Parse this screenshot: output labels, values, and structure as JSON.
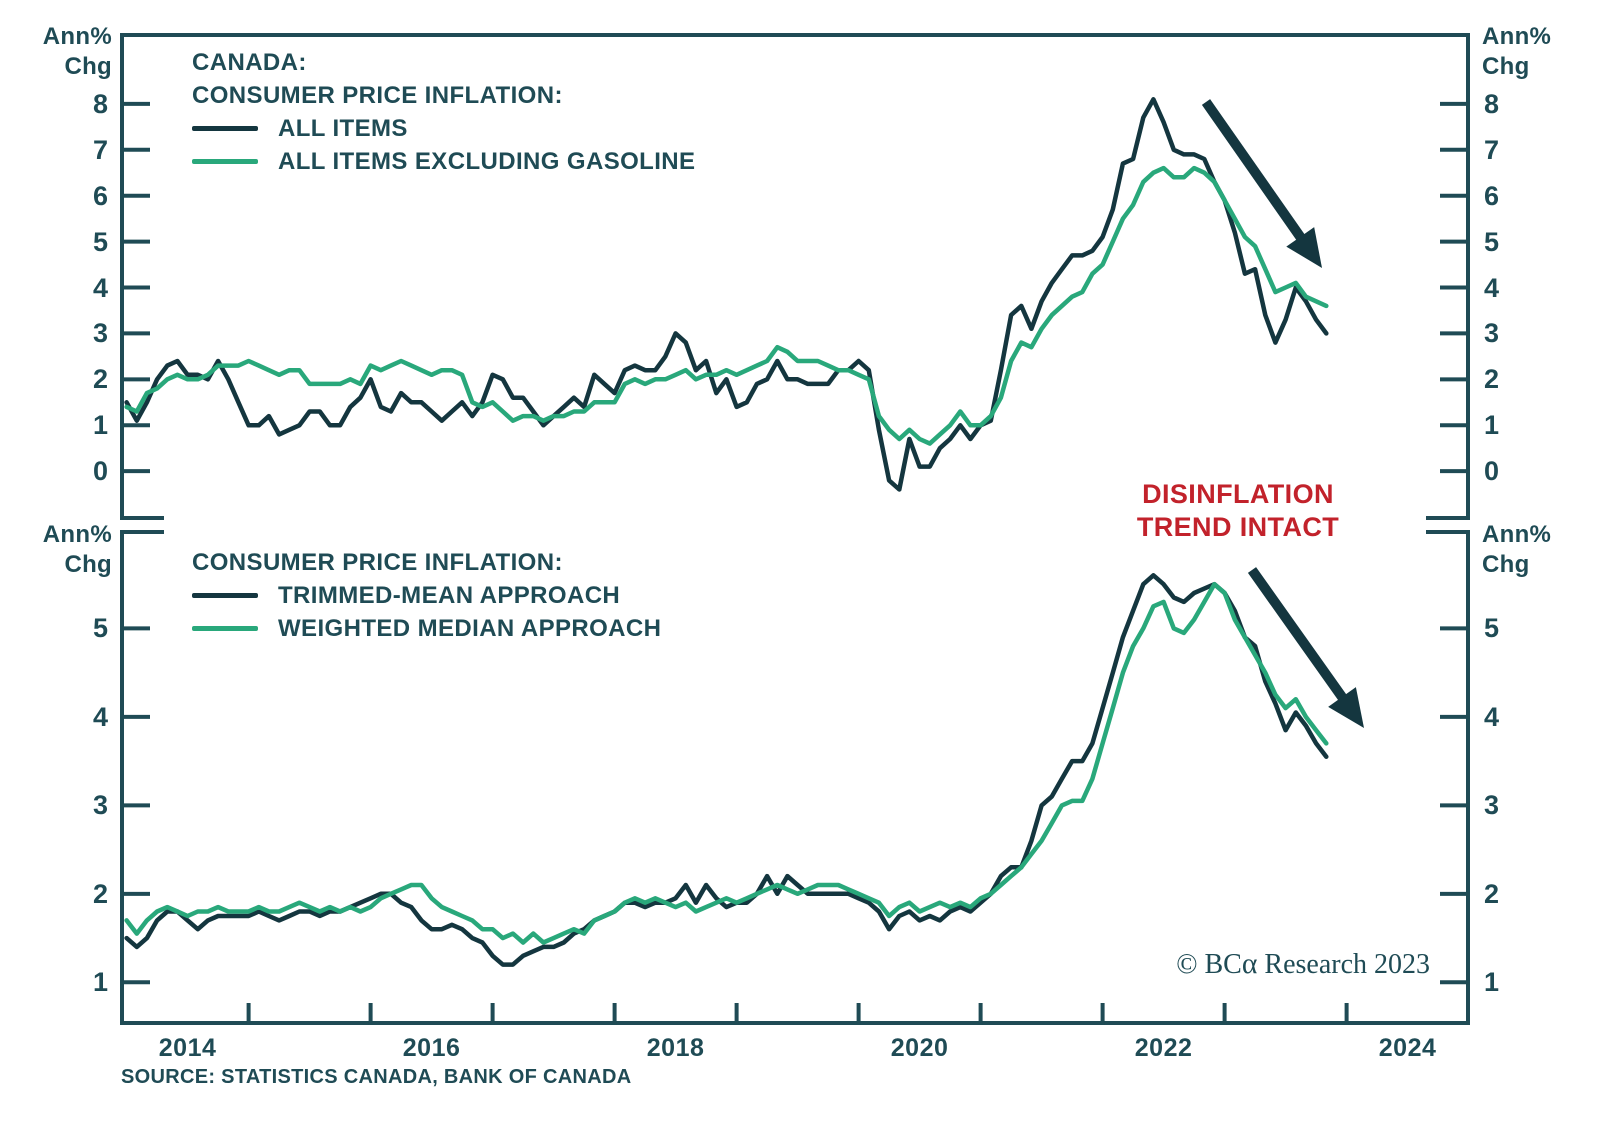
{
  "colors": {
    "axis": "#1F4B55",
    "dark_series": "#14363F",
    "green_series": "#29A87B",
    "red": "#C2222B",
    "background": "#FFFFFF"
  },
  "axis_label": {
    "line1": "Ann%",
    "line2": "Chg"
  },
  "annotation": {
    "line1": "DISINFLATION",
    "line2": "TREND INTACT"
  },
  "copyright": {
    "prefix": "© BC",
    "alpha": "α",
    "suffix": " Research 2023"
  },
  "source": "SOURCE: STATISTICS CANADA, BANK OF CANADA",
  "x_axis": {
    "year_labels": [
      "2014",
      "2016",
      "2018",
      "2020",
      "2022",
      "2024"
    ],
    "tick_years": [
      2015,
      2016,
      2017,
      2018,
      2019,
      2020,
      2021,
      2022,
      2023,
      2024
    ]
  },
  "chart_data": [
    {
      "type": "line",
      "panel": "top",
      "title": "CANADA: CONSUMER PRICE INFLATION",
      "title_lines": [
        "CANADA:",
        "CONSUMER PRICE INFLATION:"
      ],
      "ylabel": "Ann% Chg",
      "grid": false,
      "legend_position": "top-left",
      "yticks": [
        0,
        1,
        2,
        3,
        4,
        5,
        6,
        7,
        8
      ],
      "ylim": [
        -1.02,
        9.5
      ],
      "x_start_year": 2014.0,
      "x_step_years": 0.0833333,
      "series": [
        {
          "name": "ALL ITEMS",
          "color_key": "dark_series",
          "values": [
            1.5,
            1.1,
            1.5,
            2.0,
            2.3,
            2.4,
            2.1,
            2.1,
            2.0,
            2.4,
            2.0,
            1.5,
            1.0,
            1.0,
            1.2,
            0.8,
            0.9,
            1.0,
            1.3,
            1.3,
            1.0,
            1.0,
            1.4,
            1.6,
            2.0,
            1.4,
            1.3,
            1.7,
            1.5,
            1.5,
            1.3,
            1.1,
            1.3,
            1.5,
            1.2,
            1.5,
            2.1,
            2.0,
            1.6,
            1.6,
            1.3,
            1.0,
            1.2,
            1.4,
            1.6,
            1.4,
            2.1,
            1.9,
            1.7,
            2.2,
            2.3,
            2.2,
            2.2,
            2.5,
            3.0,
            2.8,
            2.2,
            2.4,
            1.7,
            2.0,
            1.4,
            1.5,
            1.9,
            2.0,
            2.4,
            2.0,
            2.0,
            1.9,
            1.9,
            1.9,
            2.2,
            2.2,
            2.4,
            2.2,
            0.9,
            -0.2,
            -0.4,
            0.7,
            0.1,
            0.1,
            0.5,
            0.7,
            1.0,
            0.7,
            1.0,
            1.1,
            2.2,
            3.4,
            3.6,
            3.1,
            3.7,
            4.1,
            4.4,
            4.7,
            4.7,
            4.8,
            5.1,
            5.7,
            6.7,
            6.8,
            7.7,
            8.1,
            7.6,
            7.0,
            6.9,
            6.9,
            6.8,
            6.3,
            5.9,
            5.2,
            4.3,
            4.4,
            3.4,
            2.8,
            3.3,
            4.0,
            3.7,
            3.3,
            3.0
          ]
        },
        {
          "name": "ALL ITEMS EXCLUDING GASOLINE",
          "color_key": "green_series",
          "values": [
            1.4,
            1.3,
            1.7,
            1.8,
            2.0,
            2.1,
            2.0,
            2.0,
            2.1,
            2.3,
            2.3,
            2.3,
            2.4,
            2.3,
            2.2,
            2.1,
            2.2,
            2.2,
            1.9,
            1.9,
            1.9,
            1.9,
            2.0,
            1.9,
            2.3,
            2.2,
            2.3,
            2.4,
            2.3,
            2.2,
            2.1,
            2.2,
            2.2,
            2.1,
            1.5,
            1.4,
            1.5,
            1.3,
            1.1,
            1.2,
            1.2,
            1.1,
            1.2,
            1.2,
            1.3,
            1.3,
            1.5,
            1.5,
            1.5,
            1.9,
            2.0,
            1.9,
            2.0,
            2.0,
            2.1,
            2.2,
            2.0,
            2.1,
            2.1,
            2.2,
            2.1,
            2.2,
            2.3,
            2.4,
            2.7,
            2.6,
            2.4,
            2.4,
            2.4,
            2.3,
            2.2,
            2.2,
            2.1,
            2.0,
            1.2,
            0.9,
            0.7,
            0.9,
            0.7,
            0.6,
            0.8,
            1.0,
            1.3,
            1.0,
            1.0,
            1.2,
            1.6,
            2.4,
            2.8,
            2.7,
            3.1,
            3.4,
            3.6,
            3.8,
            3.9,
            4.3,
            4.5,
            5.0,
            5.5,
            5.8,
            6.3,
            6.5,
            6.6,
            6.4,
            6.4,
            6.6,
            6.5,
            6.3,
            5.9,
            5.5,
            5.1,
            4.9,
            4.4,
            3.9,
            4.0,
            4.1,
            3.8,
            3.7,
            3.6
          ]
        }
      ]
    },
    {
      "type": "line",
      "panel": "bottom",
      "title": "CONSUMER PRICE INFLATION (CORE MEASURES)",
      "title_lines": [
        "CONSUMER PRICE INFLATION:"
      ],
      "ylabel": "Ann% Chg",
      "grid": false,
      "legend_position": "top-left",
      "annotation_text": "DISINFLATION TREND INTACT",
      "yticks": [
        1,
        2,
        3,
        4,
        5
      ],
      "ylim": [
        0.54,
        6.09
      ],
      "x_start_year": 2014.0,
      "x_step_years": 0.0833333,
      "series": [
        {
          "name": "TRIMMED-MEAN APPROACH",
          "color_key": "dark_series",
          "values": [
            1.5,
            1.4,
            1.5,
            1.7,
            1.8,
            1.8,
            1.7,
            1.6,
            1.7,
            1.75,
            1.75,
            1.75,
            1.75,
            1.8,
            1.75,
            1.7,
            1.75,
            1.8,
            1.8,
            1.75,
            1.8,
            1.8,
            1.85,
            1.9,
            1.95,
            2.0,
            2.0,
            1.9,
            1.85,
            1.7,
            1.6,
            1.6,
            1.65,
            1.6,
            1.5,
            1.45,
            1.3,
            1.2,
            1.2,
            1.3,
            1.35,
            1.4,
            1.4,
            1.45,
            1.55,
            1.6,
            1.7,
            1.75,
            1.8,
            1.9,
            1.9,
            1.85,
            1.9,
            1.9,
            1.95,
            2.1,
            1.9,
            2.1,
            1.95,
            1.85,
            1.9,
            1.9,
            2.0,
            2.2,
            2.0,
            2.2,
            2.1,
            2.0,
            2.0,
            2.0,
            2.0,
            2.0,
            1.95,
            1.9,
            1.8,
            1.6,
            1.75,
            1.8,
            1.7,
            1.75,
            1.7,
            1.8,
            1.85,
            1.8,
            1.9,
            2.0,
            2.2,
            2.3,
            2.3,
            2.6,
            3.0,
            3.1,
            3.3,
            3.5,
            3.5,
            3.7,
            4.1,
            4.5,
            4.9,
            5.2,
            5.5,
            5.6,
            5.5,
            5.35,
            5.3,
            5.4,
            5.45,
            5.5,
            5.4,
            5.2,
            4.9,
            4.8,
            4.4,
            4.15,
            3.85,
            4.05,
            3.9,
            3.7,
            3.55
          ]
        },
        {
          "name": "WEIGHTED MEDIAN APPROACH",
          "color_key": "green_series",
          "values": [
            1.7,
            1.55,
            1.7,
            1.8,
            1.85,
            1.8,
            1.75,
            1.8,
            1.8,
            1.85,
            1.8,
            1.8,
            1.8,
            1.85,
            1.8,
            1.8,
            1.85,
            1.9,
            1.85,
            1.8,
            1.85,
            1.8,
            1.85,
            1.8,
            1.85,
            1.95,
            2.0,
            2.05,
            2.1,
            2.1,
            1.95,
            1.85,
            1.8,
            1.75,
            1.7,
            1.6,
            1.6,
            1.5,
            1.55,
            1.45,
            1.55,
            1.45,
            1.5,
            1.55,
            1.6,
            1.55,
            1.7,
            1.75,
            1.8,
            1.9,
            1.95,
            1.9,
            1.95,
            1.9,
            1.85,
            1.9,
            1.8,
            1.85,
            1.9,
            1.95,
            1.9,
            1.95,
            2.0,
            2.05,
            2.1,
            2.05,
            2.0,
            2.05,
            2.1,
            2.1,
            2.1,
            2.05,
            2.0,
            1.95,
            1.9,
            1.75,
            1.85,
            1.9,
            1.8,
            1.85,
            1.9,
            1.85,
            1.9,
            1.85,
            1.95,
            2.0,
            2.1,
            2.2,
            2.3,
            2.45,
            2.6,
            2.8,
            3.0,
            3.05,
            3.05,
            3.3,
            3.7,
            4.1,
            4.5,
            4.8,
            5.0,
            5.25,
            5.3,
            5.0,
            4.95,
            5.1,
            5.3,
            5.5,
            5.4,
            5.1,
            4.9,
            4.7,
            4.5,
            4.25,
            4.1,
            4.2,
            4.0,
            3.85,
            3.7
          ]
        }
      ]
    }
  ]
}
